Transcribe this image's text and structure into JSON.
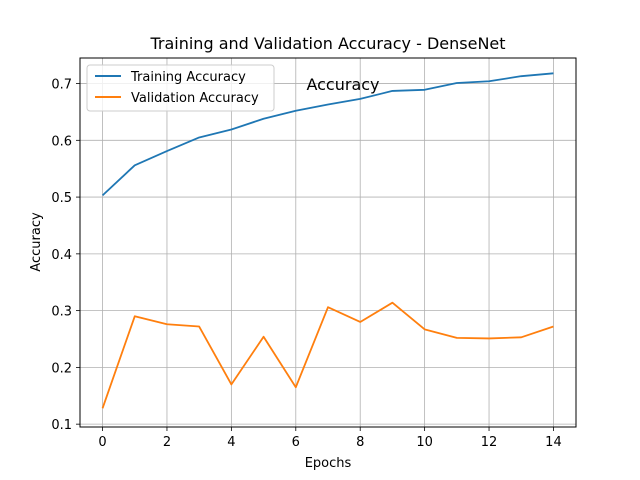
{
  "chart_data": {
    "type": "line",
    "title": "Training and Validation Accuracy - DenseNet",
    "xlabel": "Epochs",
    "ylabel": "Accuracy",
    "annotation": "Accuracy",
    "x": [
      0,
      1,
      2,
      3,
      4,
      5,
      6,
      7,
      8,
      9,
      10,
      11,
      12,
      13,
      14
    ],
    "xticks": [
      0,
      2,
      4,
      6,
      8,
      10,
      12,
      14
    ],
    "yticks": [
      0.1,
      0.2,
      0.3,
      0.4,
      0.5,
      0.6,
      0.7
    ],
    "xlim": [
      -0.7,
      14.7
    ],
    "ylim": [
      0.095,
      0.745
    ],
    "grid": true,
    "legend_position": "top-left",
    "series": [
      {
        "name": "Training Accuracy",
        "color": "#1f77b4",
        "values": [
          0.503,
          0.556,
          0.581,
          0.605,
          0.619,
          0.638,
          0.652,
          0.663,
          0.673,
          0.687,
          0.689,
          0.701,
          0.704,
          0.713,
          0.718
        ]
      },
      {
        "name": "Validation Accuracy",
        "color": "#ff7f0e",
        "values": [
          0.128,
          0.29,
          0.276,
          0.272,
          0.17,
          0.254,
          0.165,
          0.306,
          0.28,
          0.314,
          0.267,
          0.252,
          0.251,
          0.253,
          0.272
        ]
      }
    ]
  }
}
